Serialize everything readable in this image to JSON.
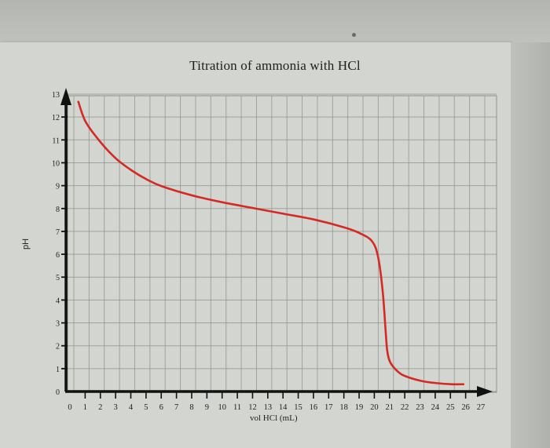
{
  "chart_data": {
    "type": "line",
    "title": "Titration of ammonia with HCl",
    "xlabel": "vol HCl (mL)",
    "ylabel": "pH",
    "xlim": [
      0,
      27
    ],
    "ylim": [
      0,
      13
    ],
    "x_ticks": [
      0,
      1,
      2,
      3,
      4,
      5,
      6,
      7,
      8,
      9,
      10,
      11,
      12,
      13,
      14,
      15,
      16,
      17,
      18,
      19,
      20,
      21,
      22,
      23,
      24,
      25,
      26,
      27
    ],
    "y_ticks": [
      0,
      1,
      2,
      3,
      4,
      5,
      6,
      7,
      8,
      9,
      10,
      11,
      12,
      13
    ],
    "grid": true,
    "legend": null,
    "series": [
      {
        "name": "pH",
        "color": "#d42a24",
        "x": [
          0.5,
          1,
          2,
          3,
          4,
          5,
          6,
          8,
          10,
          12,
          14,
          16,
          18,
          19,
          19.8,
          20.2,
          20.5,
          20.7,
          20.8,
          21,
          21.5,
          22,
          23,
          24,
          25,
          25.8
        ],
        "y": [
          12.6,
          11.7,
          10.8,
          10.1,
          9.6,
          9.2,
          8.9,
          8.5,
          8.2,
          7.95,
          7.7,
          7.45,
          7.1,
          6.85,
          6.5,
          5.8,
          4.3,
          2.5,
          1.7,
          1.2,
          0.8,
          0.6,
          0.4,
          0.3,
          0.25,
          0.25
        ]
      }
    ]
  },
  "labels": {
    "title": "Titration of ammonia with HCl",
    "xlabel": "vol HCl (mL)",
    "ylabel": "pH"
  }
}
